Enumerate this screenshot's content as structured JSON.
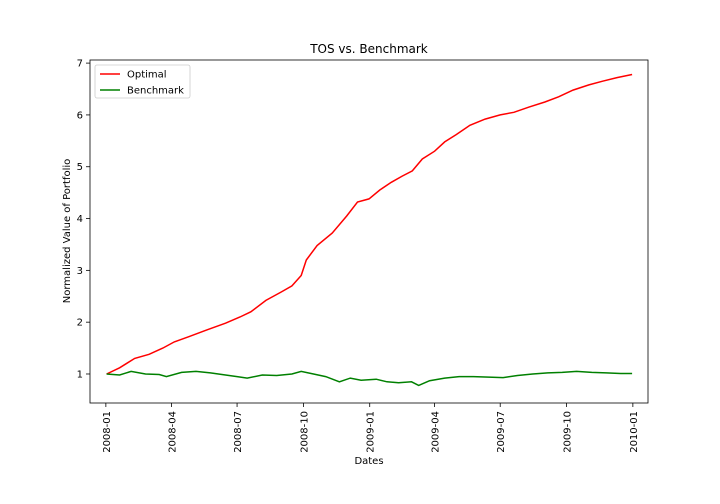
{
  "chart_data": {
    "type": "line",
    "title": "TOS vs. Benchmark",
    "xlabel": "Dates",
    "ylabel": "Normalized Value of Portfolio",
    "xlim": [
      "2007-12-10",
      "2010-01-22"
    ],
    "ylim": [
      0.44,
      7.06
    ],
    "x_ticks": [
      "2008-01",
      "2008-04",
      "2008-07",
      "2008-10",
      "2009-01",
      "2009-04",
      "2009-07",
      "2009-10",
      "2010-01"
    ],
    "y_ticks": [
      1,
      2,
      3,
      4,
      5,
      6,
      7
    ],
    "grid": false,
    "legend": {
      "placement": "top-left"
    },
    "series": [
      {
        "name": "Optimal",
        "color": "#ff0000",
        "x": [
          "2008-01-02",
          "2008-01-20",
          "2008-02-10",
          "2008-03-01",
          "2008-03-20",
          "2008-04-05",
          "2008-04-25",
          "2008-05-20",
          "2008-06-15",
          "2008-07-05",
          "2008-07-20",
          "2008-08-10",
          "2008-08-31",
          "2008-09-15",
          "2008-09-28",
          "2008-10-05",
          "2008-10-20",
          "2008-11-10",
          "2008-11-30",
          "2008-12-15",
          "2008-12-31",
          "2009-01-15",
          "2009-01-31",
          "2009-02-15",
          "2009-03-01",
          "2009-03-15",
          "2009-04-01",
          "2009-04-15",
          "2009-05-01",
          "2009-05-20",
          "2009-06-10",
          "2009-07-01",
          "2009-07-20",
          "2009-08-10",
          "2009-09-01",
          "2009-09-20",
          "2009-10-10",
          "2009-11-01",
          "2009-11-20",
          "2009-12-10",
          "2009-12-31"
        ],
        "y": [
          1.0,
          1.12,
          1.3,
          1.38,
          1.5,
          1.62,
          1.72,
          1.85,
          1.98,
          2.1,
          2.2,
          2.42,
          2.58,
          2.7,
          2.9,
          3.2,
          3.48,
          3.72,
          4.05,
          4.32,
          4.38,
          4.55,
          4.7,
          4.82,
          4.92,
          5.15,
          5.3,
          5.48,
          5.62,
          5.8,
          5.92,
          6.0,
          6.05,
          6.15,
          6.25,
          6.35,
          6.48,
          6.58,
          6.65,
          6.72,
          6.78
        ]
      },
      {
        "name": "Benchmark",
        "color": "#008000",
        "x": [
          "2008-01-02",
          "2008-01-20",
          "2008-02-05",
          "2008-02-25",
          "2008-03-15",
          "2008-03-25",
          "2008-04-15",
          "2008-05-05",
          "2008-05-25",
          "2008-06-15",
          "2008-07-01",
          "2008-07-15",
          "2008-08-05",
          "2008-08-25",
          "2008-09-15",
          "2008-09-28",
          "2008-10-15",
          "2008-11-01",
          "2008-11-20",
          "2008-12-05",
          "2008-12-20",
          "2009-01-10",
          "2009-01-25",
          "2009-02-10",
          "2009-02-28",
          "2009-03-10",
          "2009-03-25",
          "2009-04-15",
          "2009-05-05",
          "2009-05-25",
          "2009-06-15",
          "2009-07-05",
          "2009-07-25",
          "2009-08-15",
          "2009-09-05",
          "2009-09-25",
          "2009-10-15",
          "2009-11-05",
          "2009-11-25",
          "2009-12-15",
          "2009-12-31"
        ],
        "y": [
          1.0,
          0.98,
          1.05,
          1.0,
          0.99,
          0.95,
          1.03,
          1.05,
          1.02,
          0.98,
          0.95,
          0.92,
          0.98,
          0.97,
          1.0,
          1.05,
          1.0,
          0.95,
          0.85,
          0.92,
          0.88,
          0.9,
          0.85,
          0.83,
          0.85,
          0.78,
          0.87,
          0.92,
          0.95,
          0.95,
          0.94,
          0.93,
          0.97,
          1.0,
          1.02,
          1.03,
          1.05,
          1.03,
          1.02,
          1.01,
          1.01
        ]
      }
    ]
  }
}
